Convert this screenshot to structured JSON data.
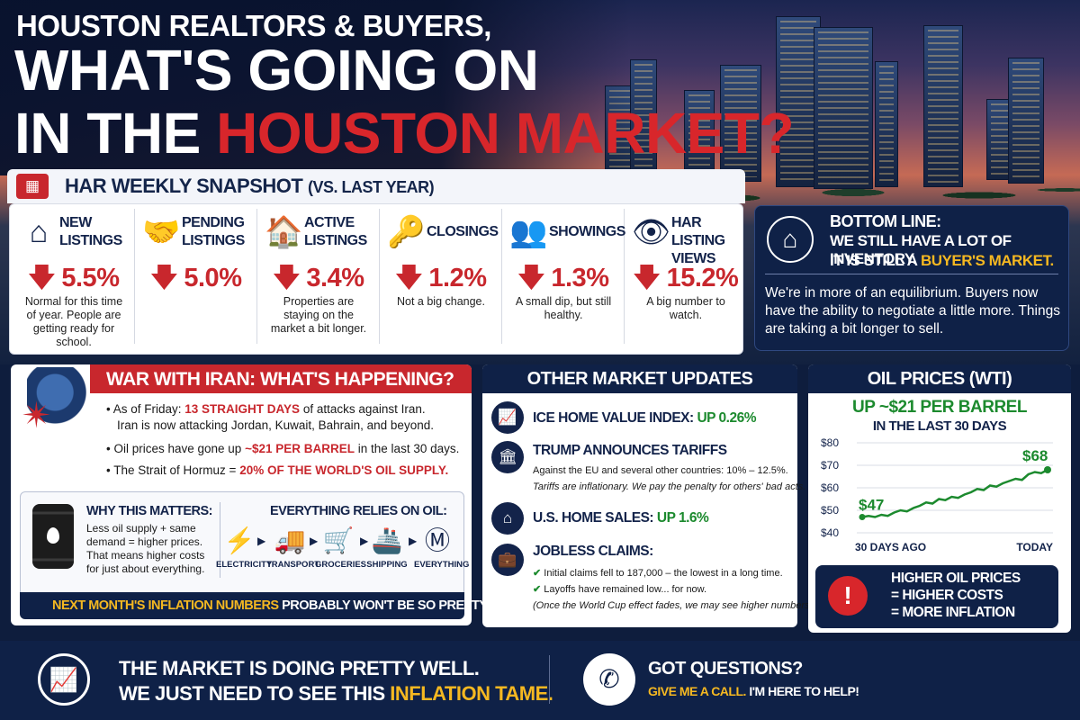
{
  "colors": {
    "navy": "#0f2147",
    "red": "#c8272d",
    "green": "#1c8a2e",
    "gold": "#f5b821"
  },
  "title": {
    "line1": "HOUSTON REALTORS & BUYERS,",
    "line2": "WHAT'S GOING ON",
    "line3_prefix": "IN THE",
    "line3_highlight": "HOUSTON MARKET?"
  },
  "snapshot": {
    "title": "HAR WEEKLY SNAPSHOT",
    "subtitle": "(VS. LAST YEAR)",
    "icon": "calendar-icon",
    "metrics": [
      {
        "label": "NEW LISTINGS",
        "value": "5.5%",
        "direction": "down",
        "note": "Normal for this time of year. People are getting ready for school.",
        "icon": "house-icon"
      },
      {
        "label": "PENDING LISTINGS",
        "value": "5.0%",
        "direction": "down",
        "note": "",
        "icon": "handshake-icon"
      },
      {
        "label": "ACTIVE LISTINGS",
        "value": "3.4%",
        "direction": "down",
        "note": "Properties are staying on the market a bit longer.",
        "icon": "building-icon"
      },
      {
        "label": "CLOSINGS",
        "value": "1.2%",
        "direction": "down",
        "note": "Not a big change.",
        "icon": "key-icon"
      },
      {
        "label": "SHOWINGS",
        "value": "1.3%",
        "direction": "down",
        "note": "A small dip, but still healthy.",
        "icon": "people-icon"
      },
      {
        "label": "HAR LISTING VIEWS",
        "value": "15.2%",
        "direction": "down",
        "note": "A big number to watch.",
        "icon": "eye-icon"
      }
    ]
  },
  "bottom_line": {
    "heading": "BOTTOM LINE:",
    "line1": "WE STILL HAVE A LOT OF INVENTORY.",
    "line2_prefix": "IT IS STILL A",
    "line2_highlight": "BUYER'S MARKET.",
    "body": "We're in more of an equilibrium. Buyers now have the ability to negotiate a little more. Things are taking a bit longer to sell.",
    "icon": "house-icon"
  },
  "war": {
    "title": "WAR WITH IRAN: WHAT'S HAPPENING?",
    "bullet1_prefix": "As of Friday:",
    "bullet1_highlight": "13 STRAIGHT DAYS",
    "bullet1_suffix": "of attacks against Iran.",
    "bullet1_line2": "Iran is now attacking Jordan, Kuwait, Bahrain, and beyond.",
    "bullet2_prefix": "Oil prices have gone up",
    "bullet2_highlight": "~$21 PER BARREL",
    "bullet2_suffix": "in the last 30 days.",
    "bullet3_prefix": "The Strait of Hormuz =",
    "bullet3_highlight": "20% OF THE WORLD'S OIL SUPPLY.",
    "why_title": "WHY THIS MATTERS:",
    "why_body": "Less oil supply + same demand = higher prices. That means higher costs for just about everything.",
    "relies_title": "EVERYTHING RELIES ON OIL:",
    "relies_items": [
      {
        "label": "ELECTRICITY",
        "icon": "lightning-icon"
      },
      {
        "label": "TRANSPORT",
        "icon": "truck-icon"
      },
      {
        "label": "GROCERIES",
        "icon": "cart-icon"
      },
      {
        "label": "SHIPPING",
        "icon": "ship-icon"
      },
      {
        "label": "EVERYTHING",
        "icon": "dollar-icon"
      }
    ],
    "inflation_highlight": "NEXT MONTH'S INFLATION NUMBERS",
    "inflation_suffix": "PROBABLY WON'T BE SO PRETTY."
  },
  "updates": {
    "title": "OTHER MARKET UPDATES",
    "ice_prefix": "ICE HOME VALUE INDEX:",
    "ice_value": "UP 0.26%",
    "tariffs_title": "TRUMP ANNOUNCES TARIFFS",
    "tariffs_line1": "Against the EU and several other countries: 10% – 12.5%.",
    "tariffs_line2": "Tariffs are inflationary. We pay the penalty for others' bad acts.",
    "sales_prefix": "U.S. HOME SALES:",
    "sales_value": "UP 1.6%",
    "jobless_title": "JOBLESS CLAIMS:",
    "jobless_line1": "Initial claims fell to 187,000 – the lowest in a long time.",
    "jobless_line2": "Layoffs have remained low... for now.",
    "jobless_line3": "(Once the World Cup effect fades, we may see higher numbers.)"
  },
  "oil": {
    "title": "OIL PRICES (WTI)",
    "headline": "UP ~$21 PER BARREL",
    "subhead": "IN THE LAST 30 DAYS",
    "callout1": "HIGHER OIL PRICES",
    "callout2": "= HIGHER COSTS",
    "callout3": "= MORE INFLATION"
  },
  "chart_data": {
    "type": "line",
    "x_labels": [
      "30 DAYS AGO",
      "TODAY"
    ],
    "y_ticks": [
      "$40",
      "$50",
      "$60",
      "$70",
      "$80"
    ],
    "ylim": [
      40,
      80
    ],
    "start_label": "$47",
    "end_label": "$68",
    "values": [
      47,
      47.5,
      47,
      48,
      47.5,
      49,
      50,
      49.5,
      51,
      52,
      53.5,
      53,
      55,
      54.5,
      56,
      55.5,
      57,
      58,
      59.5,
      59,
      61,
      60.5,
      62,
      63,
      64,
      63.5,
      66,
      67,
      66.5,
      68
    ]
  },
  "footer": {
    "line1": "THE MARKET IS DOING PRETTY WELL.",
    "line2_prefix": "WE JUST NEED TO SEE THIS",
    "line2_highlight": "INFLATION TAME.",
    "question": "GOT QUESTIONS?",
    "call_highlight": "GIVE ME A CALL.",
    "call_suffix": "I'M HERE TO HELP!"
  }
}
